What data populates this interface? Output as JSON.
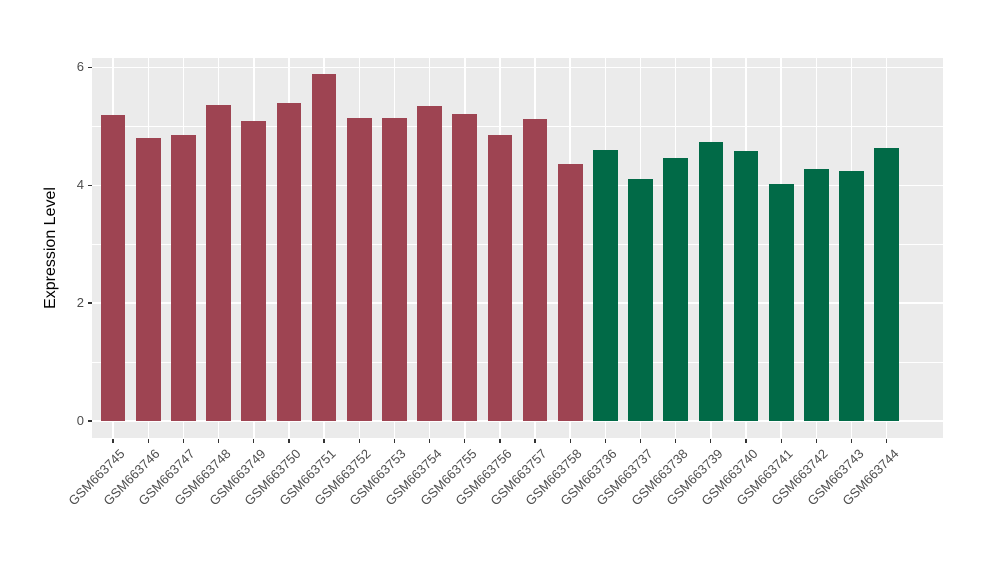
{
  "chart_data": {
    "type": "bar",
    "title": "",
    "xlabel": "",
    "ylabel": "Expression Level",
    "categories": [
      "GSM663745",
      "GSM663746",
      "GSM663747",
      "GSM663748",
      "GSM663749",
      "GSM663750",
      "GSM663751",
      "GSM663752",
      "GSM663753",
      "GSM663754",
      "GSM663755",
      "GSM663756",
      "GSM663757",
      "GSM663758",
      "GSM663736",
      "GSM663737",
      "GSM663738",
      "GSM663739",
      "GSM663740",
      "GSM663741",
      "GSM663742",
      "GSM663743",
      "GSM663744"
    ],
    "values": [
      5.2,
      4.8,
      4.86,
      5.36,
      5.09,
      5.39,
      5.88,
      5.15,
      5.15,
      5.34,
      5.21,
      4.85,
      5.12,
      4.36,
      4.6,
      4.1,
      4.47,
      4.73,
      4.58,
      4.02,
      4.27,
      4.24,
      4.63
    ],
    "groups": [
      "group1",
      "group1",
      "group1",
      "group1",
      "group1",
      "group1",
      "group1",
      "group1",
      "group1",
      "group1",
      "group1",
      "group1",
      "group1",
      "group1",
      "group2",
      "group2",
      "group2",
      "group2",
      "group2",
      "group2",
      "group2",
      "group2",
      "group2"
    ],
    "group_colors": {
      "group1": "#9E4452",
      "group2": "#016A47"
    },
    "ylim": [
      -0.29,
      6.16
    ],
    "yticks": [
      0,
      2,
      4,
      6
    ],
    "yticks_minor": [
      1,
      3,
      5
    ],
    "bar_width_fraction": 0.7,
    "legend": "none",
    "grid": "on",
    "panel_background": "#EBEBEB",
    "gridline_color": "#FFFFFF",
    "x_label_angle_deg": 45
  }
}
